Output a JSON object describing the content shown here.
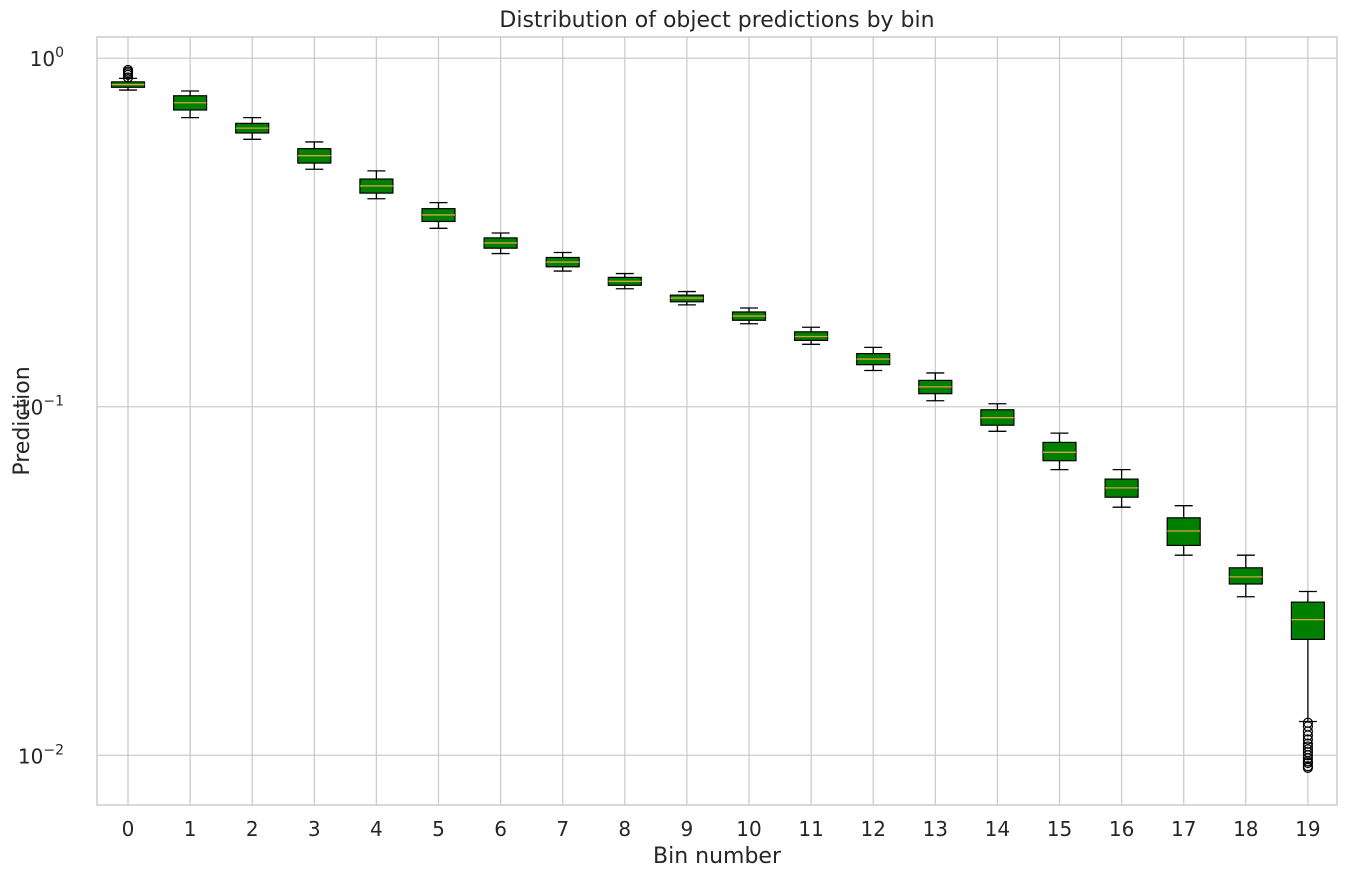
{
  "chart_data": {
    "type": "box",
    "title": "Distribution of object predictions by bin",
    "xlabel": "Bin number",
    "ylabel": "Prediction",
    "yscale": "log",
    "ylim": [
      0.0072,
      1.15
    ],
    "y_ticks": [
      {
        "value": 1,
        "base": "10",
        "exp": "0"
      },
      {
        "value": 0.1,
        "base": "10",
        "exp": "−1"
      },
      {
        "value": 0.01,
        "base": "10",
        "exp": "−2"
      }
    ],
    "grid": true,
    "box_color": "#008000",
    "median_color": "#d8a040",
    "whisker_color": "#000000",
    "categories": [
      "0",
      "1",
      "2",
      "3",
      "4",
      "5",
      "6",
      "7",
      "8",
      "9",
      "10",
      "11",
      "12",
      "13",
      "14",
      "15",
      "16",
      "17",
      "18",
      "19"
    ],
    "boxes": [
      {
        "bin": "0",
        "whislo": 0.81,
        "q1": 0.825,
        "median": 0.84,
        "q3": 0.855,
        "whishi": 0.875,
        "fliers": [
          0.88,
          0.895,
          0.905,
          0.915,
          0.925
        ]
      },
      {
        "bin": "1",
        "whislo": 0.675,
        "q1": 0.71,
        "median": 0.745,
        "q3": 0.78,
        "whishi": 0.805,
        "fliers": []
      },
      {
        "bin": "2",
        "whislo": 0.585,
        "q1": 0.61,
        "median": 0.63,
        "q3": 0.65,
        "whishi": 0.675,
        "fliers": []
      },
      {
        "bin": "3",
        "whislo": 0.48,
        "q1": 0.5,
        "median": 0.525,
        "q3": 0.55,
        "whishi": 0.575,
        "fliers": []
      },
      {
        "bin": "4",
        "whislo": 0.395,
        "q1": 0.41,
        "median": 0.43,
        "q3": 0.45,
        "whishi": 0.475,
        "fliers": []
      },
      {
        "bin": "5",
        "whislo": 0.325,
        "q1": 0.34,
        "median": 0.355,
        "q3": 0.37,
        "whishi": 0.385,
        "fliers": []
      },
      {
        "bin": "6",
        "whislo": 0.275,
        "q1": 0.285,
        "median": 0.295,
        "q3": 0.305,
        "whishi": 0.315,
        "fliers": []
      },
      {
        "bin": "7",
        "whislo": 0.245,
        "q1": 0.252,
        "median": 0.26,
        "q3": 0.268,
        "whishi": 0.277,
        "fliers": []
      },
      {
        "bin": "8",
        "whislo": 0.218,
        "q1": 0.223,
        "median": 0.229,
        "q3": 0.235,
        "whishi": 0.241,
        "fliers": []
      },
      {
        "bin": "9",
        "whislo": 0.196,
        "q1": 0.2,
        "median": 0.205,
        "q3": 0.209,
        "whishi": 0.214,
        "fliers": []
      },
      {
        "bin": "10",
        "whislo": 0.173,
        "q1": 0.177,
        "median": 0.182,
        "q3": 0.187,
        "whishi": 0.192,
        "fliers": []
      },
      {
        "bin": "11",
        "whislo": 0.151,
        "q1": 0.155,
        "median": 0.159,
        "q3": 0.164,
        "whishi": 0.169,
        "fliers": []
      },
      {
        "bin": "12",
        "whislo": 0.127,
        "q1": 0.132,
        "median": 0.137,
        "q3": 0.142,
        "whishi": 0.148,
        "fliers": []
      },
      {
        "bin": "13",
        "whislo": 0.104,
        "q1": 0.109,
        "median": 0.114,
        "q3": 0.119,
        "whishi": 0.125,
        "fliers": []
      },
      {
        "bin": "14",
        "whislo": 0.085,
        "q1": 0.0885,
        "median": 0.093,
        "q3": 0.098,
        "whishi": 0.102,
        "fliers": []
      },
      {
        "bin": "15",
        "whislo": 0.066,
        "q1": 0.07,
        "median": 0.074,
        "q3": 0.079,
        "whishi": 0.084,
        "fliers": []
      },
      {
        "bin": "16",
        "whislo": 0.0515,
        "q1": 0.055,
        "median": 0.0585,
        "q3": 0.062,
        "whishi": 0.066,
        "fliers": []
      },
      {
        "bin": "17",
        "whislo": 0.0375,
        "q1": 0.04,
        "median": 0.044,
        "q3": 0.048,
        "whishi": 0.052,
        "fliers": []
      },
      {
        "bin": "18",
        "whislo": 0.0285,
        "q1": 0.031,
        "median": 0.0325,
        "q3": 0.0345,
        "whishi": 0.0375,
        "fliers": []
      },
      {
        "bin": "19",
        "whislo": 0.0125,
        "q1": 0.0215,
        "median": 0.0245,
        "q3": 0.0275,
        "whishi": 0.0295,
        "fliers": [
          0.0124,
          0.0121,
          0.0117,
          0.0114,
          0.0111,
          0.0108,
          0.0106,
          0.0104,
          0.0102,
          0.01,
          0.0098,
          0.0096,
          0.0095,
          0.0093,
          0.0092
        ]
      }
    ]
  }
}
